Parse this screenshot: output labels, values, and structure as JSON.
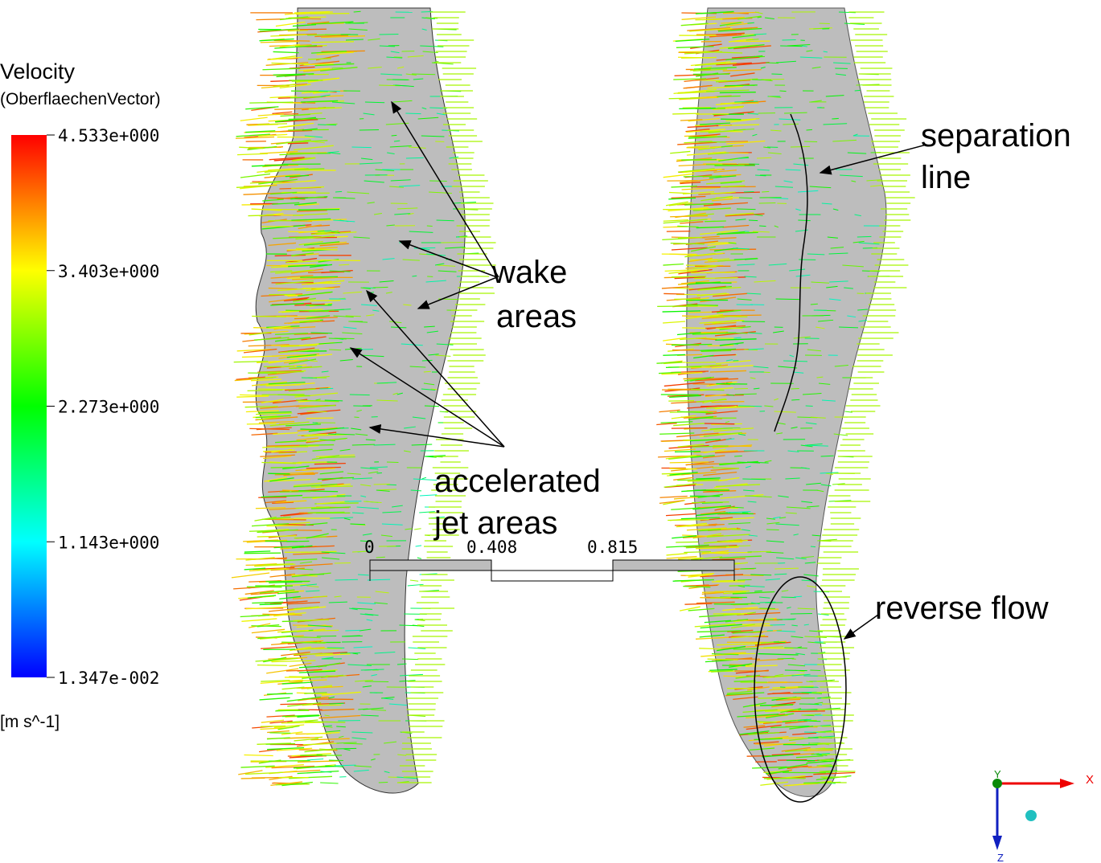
{
  "legend": {
    "title": "Velocity",
    "subtitle": "(OberflaechenVector)",
    "ticks": [
      "4.533e+000",
      "3.403e+000",
      "2.273e+000",
      "1.143e+000",
      "1.347e-002"
    ],
    "unit": "[m  s^-1]"
  },
  "annotations": {
    "wake": [
      "wake",
      "areas"
    ],
    "jet": [
      "accelerated",
      "jet areas"
    ],
    "separation": [
      "separation",
      "line"
    ],
    "reverse": "reverse flow"
  },
  "scale_bar": {
    "labels": [
      "0",
      "0.408",
      "0.815"
    ]
  },
  "axes": {
    "x": "X",
    "y": "Y",
    "z": "Z"
  }
}
